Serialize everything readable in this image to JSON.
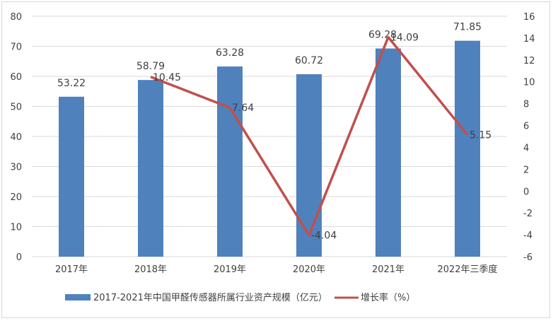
{
  "chart_data": {
    "type": "bar+line",
    "categories": [
      "2017年",
      "2018年",
      "2019年",
      "2020年",
      "2021年",
      "2022年三季度"
    ],
    "series": [
      {
        "name": "2017-2021年中国甲醛传感器所属行业资产规模（亿元）",
        "type": "bar",
        "axis": "left",
        "color": "#4f81bd",
        "values": [
          53.22,
          58.79,
          63.28,
          60.72,
          69.28,
          71.85
        ],
        "labels": [
          "53.22",
          "58.79",
          "63.28",
          "60.72",
          "69.28",
          "71.85"
        ]
      },
      {
        "name": "增长率（%）",
        "type": "line",
        "axis": "right",
        "color": "#c0504d",
        "values": [
          null,
          10.45,
          7.64,
          -4.04,
          14.09,
          5.15
        ],
        "labels": [
          "",
          "10.45",
          "7.64",
          "-4.04",
          "14.09",
          "5.15"
        ]
      }
    ],
    "left_axis": {
      "range": [
        0,
        80
      ],
      "ticks": [
        "0",
        "10",
        "20",
        "30",
        "40",
        "50",
        "60",
        "70",
        "80"
      ]
    },
    "right_axis": {
      "range": [
        -6,
        16
      ],
      "ticks": [
        "-6",
        "-4",
        "-2",
        "0",
        "2",
        "4",
        "6",
        "8",
        "10",
        "12",
        "14",
        "16"
      ]
    },
    "grid": true,
    "legend": "bottom"
  }
}
